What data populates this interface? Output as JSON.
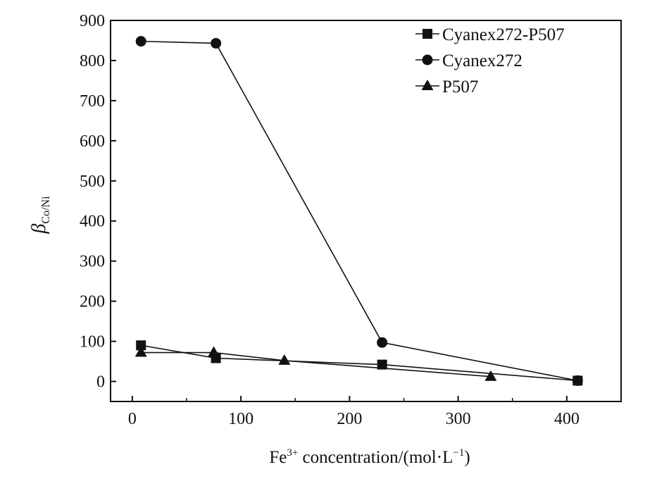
{
  "chart_data": {
    "type": "line",
    "title": "",
    "xlabel": {
      "prefix": "Fe",
      "prefix_sup": "3+",
      "middle": " concentration/(mol·L",
      "unit_sup": "−1",
      "suffix": ")"
    },
    "ylabel": {
      "main": "β",
      "sub": "Co/Ni"
    },
    "xlim": [
      -20,
      450
    ],
    "ylim": [
      -50,
      900
    ],
    "xticks": [
      0,
      100,
      200,
      300,
      400
    ],
    "yticks": [
      0,
      100,
      200,
      300,
      400,
      500,
      600,
      700,
      800,
      900
    ],
    "grid": false,
    "legend_position": "top-right",
    "series": [
      {
        "name": "Cyanex272-P507",
        "marker": "square",
        "x": [
          8,
          77,
          230,
          410
        ],
        "y": [
          90,
          58,
          42,
          2
        ]
      },
      {
        "name": "Cyanex272",
        "marker": "circle",
        "x": [
          8,
          77,
          230,
          410
        ],
        "y": [
          848,
          843,
          97,
          2
        ]
      },
      {
        "name": "P507",
        "marker": "triangle",
        "x": [
          8,
          75,
          140,
          330
        ],
        "y": [
          72,
          72,
          52,
          12
        ]
      }
    ]
  }
}
